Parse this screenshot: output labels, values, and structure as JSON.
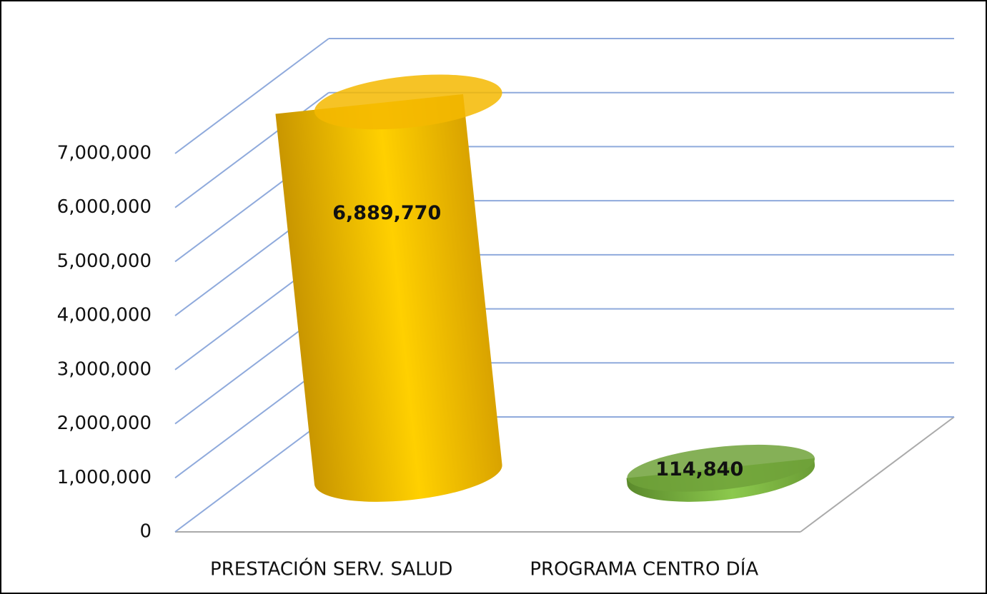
{
  "chart_data": {
    "type": "cylinder",
    "categories": [
      "PRESTACIÓN SERV. SALUD",
      "PROGRAMA CENTRO DÍA"
    ],
    "values": [
      6889770,
      114840
    ],
    "value_labels": [
      "6,889,770",
      "114,840"
    ],
    "colors": [
      "#f5b800",
      "#70a23a"
    ],
    "ylim": [
      0,
      7000000
    ],
    "yticks": [
      0,
      {
        "value": 1000000,
        "label": "1,000,000"
      },
      {
        "value": 2000000,
        "label": "2,000,000"
      },
      {
        "value": 3000000,
        "label": "3,000,000"
      },
      {
        "value": 4000000,
        "label": "4,000,000"
      },
      {
        "value": 5000000,
        "label": "5,000,000"
      },
      {
        "value": 6000000,
        "label": "6,000,000"
      },
      {
        "value": 7000000,
        "label": "7,000,000"
      }
    ],
    "grid": true
  }
}
